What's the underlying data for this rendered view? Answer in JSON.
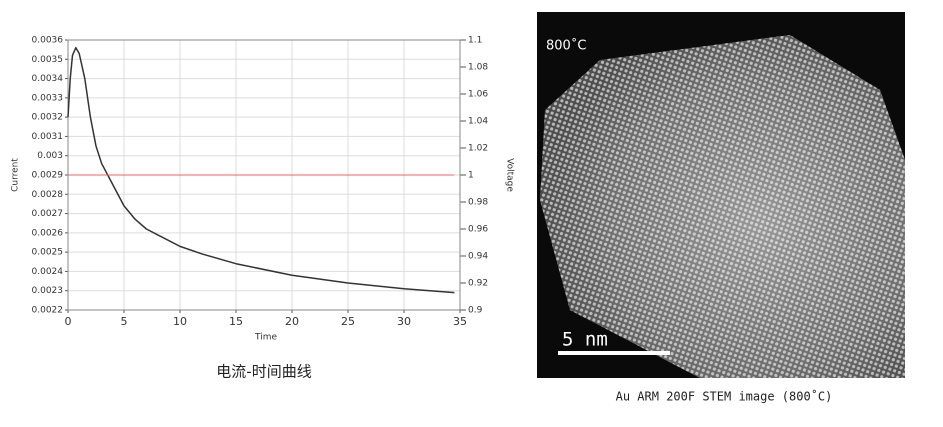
{
  "chart_data": {
    "type": "line",
    "title": "电流-时间曲线",
    "x_label": "Time",
    "y_label": "Current",
    "y2_label": "Voltage",
    "xlim": [
      0,
      35
    ],
    "xticks": [
      0,
      5,
      10,
      15,
      20,
      25,
      30,
      35
    ],
    "ylim": [
      0.0022,
      0.0036
    ],
    "yticks": [
      0.0022,
      0.0023,
      0.0024,
      0.0025,
      0.0026,
      0.0027,
      0.0028,
      0.0029,
      0.003,
      0.0031,
      0.0032,
      0.0033,
      0.0034,
      0.0035,
      0.0036
    ],
    "y2lim": [
      0.9,
      1.1
    ],
    "y2ticks": [
      0.9,
      0.92,
      0.94,
      0.96,
      0.98,
      1,
      1.02,
      1.04,
      1.06,
      1.08,
      1.1
    ],
    "grid": true,
    "series": [
      {
        "name": "Current",
        "color": "#333333",
        "x": [
          0,
          0.2,
          0.4,
          0.7,
          1,
          1.5,
          2,
          2.5,
          3,
          4,
          5,
          6,
          7,
          8,
          10,
          12,
          15,
          20,
          25,
          30,
          34.5
        ],
        "values": [
          0.0032,
          0.0034,
          0.00352,
          0.00356,
          0.00353,
          0.0034,
          0.0032,
          0.00305,
          0.00296,
          0.00285,
          0.00274,
          0.00267,
          0.00262,
          0.00259,
          0.00253,
          0.00249,
          0.00244,
          0.00238,
          0.00234,
          0.00231,
          0.00229
        ]
      },
      {
        "name": "Voltage",
        "color": "#f06060",
        "axis": "y2",
        "x": [
          0,
          34.5
        ],
        "values": [
          1,
          1
        ]
      }
    ]
  },
  "image": {
    "label": "800˚C",
    "scale_bar": "5 nm",
    "caption": "Au ARM 200F STEM image (800˚C)"
  }
}
